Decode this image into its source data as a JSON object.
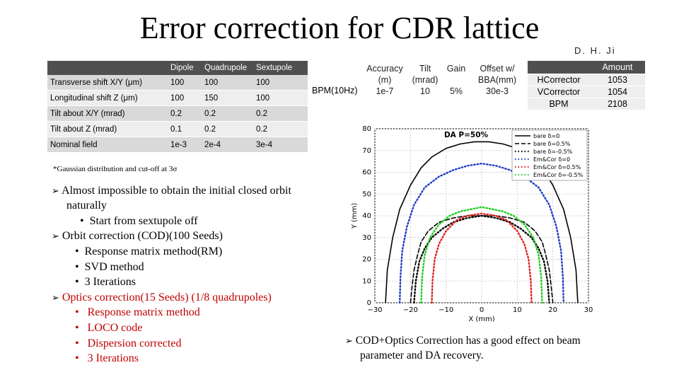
{
  "title": "Error correction for CDR lattice",
  "author": "D. H. Ji",
  "error_table": {
    "headers": [
      "",
      "Dipole",
      "Quadrupole",
      "Sextupole"
    ],
    "rows": [
      {
        "label": "Transverse shift X/Y (μm)",
        "dipole": "100",
        "quadrupole": "100",
        "sextupole": "100"
      },
      {
        "label": "Longitudinal shift Z (μm)",
        "dipole": "100",
        "quadrupole": "150",
        "sextupole": "100"
      },
      {
        "label": "Tilt about X/Y (mrad)",
        "dipole": "0.2",
        "quadrupole": "0.2",
        "sextupole": "0.2"
      },
      {
        "label": "Tilt about Z (mrad)",
        "dipole": "0.1",
        "quadrupole": "0.2",
        "sextupole": "0.2"
      },
      {
        "label": "Nominal field",
        "dipole": "1e-3",
        "quadrupole": "2e-4",
        "sextupole": "3e-4"
      }
    ],
    "note": "*Gaussian distribution and cut-off at 3σ"
  },
  "bpm": {
    "label": "BPM(10Hz)",
    "accuracy_h1": "Accuracy",
    "accuracy_h2": "(m)",
    "accuracy": "1e-7",
    "tilt_h1": "Tilt",
    "tilt_h2": "(mrad)",
    "tilt": "10",
    "gain_h": "Gain",
    "gain": "5%",
    "offset_h1": "Offset w/",
    "offset_h2": "BBA(mm)",
    "offset": "30e-3"
  },
  "correctors": {
    "header": "Amount",
    "rows": [
      {
        "name": "HCorrector",
        "amount": "1053"
      },
      {
        "name": "VCorrector",
        "amount": "1054"
      },
      {
        "name": "BPM",
        "amount": "2108"
      }
    ]
  },
  "bullets": {
    "b1_line1": "Almost impossible to obtain the initial closed orbit",
    "b1_line2": "naturally",
    "b1_sub1": "Start from sextupole off",
    "b2": "Orbit correction (COD)(100 Seeds)",
    "b2_sub1": "Response matrix method(RM)",
    "b2_sub2": "SVD method",
    "b2_sub3": "3 Iterations",
    "b3": "Optics correction(15 Seeds) (1/8 quadrupoles)",
    "b3_sub1": "Response matrix method",
    "b3_sub2": "LOCO code",
    "b3_sub3": "Dispersion corrected",
    "b3_sub4": "3 Iterations",
    "b4_line1": "COD+Optics Correction has a good effect on beam",
    "b4_line2": "parameter and DA  recovery."
  },
  "chart_data": {
    "type": "line",
    "title": "DA P=50%",
    "xlabel": "X (mm)",
    "ylabel": "Y (mm)",
    "xlim": [
      -30,
      30
    ],
    "ylim": [
      0,
      80
    ],
    "xticks": [
      -30,
      -20,
      -10,
      0,
      10,
      20,
      30
    ],
    "yticks": [
      0,
      10,
      20,
      30,
      40,
      50,
      60,
      70,
      80
    ],
    "grid": true,
    "legend_position": "top-right",
    "series": [
      {
        "name": "bare δ=0",
        "color": "#000000",
        "style": "solid",
        "x": [
          -27,
          -26.5,
          -25,
          -23,
          -20,
          -17,
          -14,
          -10,
          -6,
          -2,
          2,
          6,
          10,
          14,
          17,
          20,
          23,
          25,
          26.5,
          27
        ],
        "y": [
          0,
          15,
          30,
          43,
          54,
          62,
          67,
          71,
          73,
          74,
          74,
          73,
          71,
          67,
          62,
          54,
          43,
          30,
          15,
          0
        ]
      },
      {
        "name": "bare δ=0.5%",
        "color": "#000000",
        "style": "dashed",
        "x": [
          -20,
          -19.5,
          -19,
          -18,
          -17,
          -15,
          -12,
          -8,
          -4,
          0,
          4,
          8,
          12,
          15,
          17,
          18,
          19,
          19.5,
          20
        ],
        "y": [
          0,
          8,
          15,
          22,
          28,
          33,
          37,
          39,
          40,
          40,
          40,
          39,
          37,
          33,
          28,
          22,
          15,
          8,
          0
        ]
      },
      {
        "name": "bare δ=-0.5%",
        "color": "#000000",
        "style": "dotted",
        "x": [
          -19,
          -18.5,
          -17.5,
          -16,
          -14,
          -11,
          -8,
          -4,
          0,
          4,
          8,
          11,
          14,
          16,
          17.5,
          18.5,
          19
        ],
        "y": [
          0,
          10,
          19,
          25,
          30,
          34,
          37,
          39,
          40,
          39,
          37,
          34,
          30,
          25,
          19,
          10,
          0
        ]
      },
      {
        "name": "Em&Cor δ=0",
        "color": "#1f3cc8",
        "style": "dotted",
        "x": [
          -23,
          -22.8,
          -22.3,
          -21,
          -19,
          -16,
          -12,
          -8,
          -4,
          0,
          4,
          8,
          12,
          16,
          19,
          21,
          22.3,
          22.8,
          23
        ],
        "y": [
          0,
          12,
          24,
          35,
          45,
          53,
          58,
          61,
          63,
          64,
          63,
          61,
          58,
          53,
          45,
          35,
          24,
          12,
          0
        ]
      },
      {
        "name": "Em&Cor δ=0.5%",
        "color": "#e02020",
        "style": "dotted",
        "x": [
          -14,
          -13.8,
          -13.2,
          -12,
          -10,
          -7,
          -4,
          0,
          4,
          7,
          10,
          12,
          13.2,
          13.8,
          14
        ],
        "y": [
          0,
          10,
          20,
          27,
          33,
          38,
          40,
          41,
          40,
          38,
          33,
          27,
          20,
          10,
          0
        ]
      },
      {
        "name": "Em&Cor δ=-0.5%",
        "color": "#22cc22",
        "style": "dotted",
        "x": [
          -17,
          -16.7,
          -16,
          -14.5,
          -12,
          -9,
          -6,
          -3,
          0,
          3,
          6,
          9,
          12,
          14.5,
          16,
          16.7,
          17
        ],
        "y": [
          0,
          12,
          22,
          30,
          36,
          40,
          42,
          43,
          44,
          43,
          42,
          40,
          36,
          30,
          22,
          12,
          0
        ]
      }
    ]
  }
}
